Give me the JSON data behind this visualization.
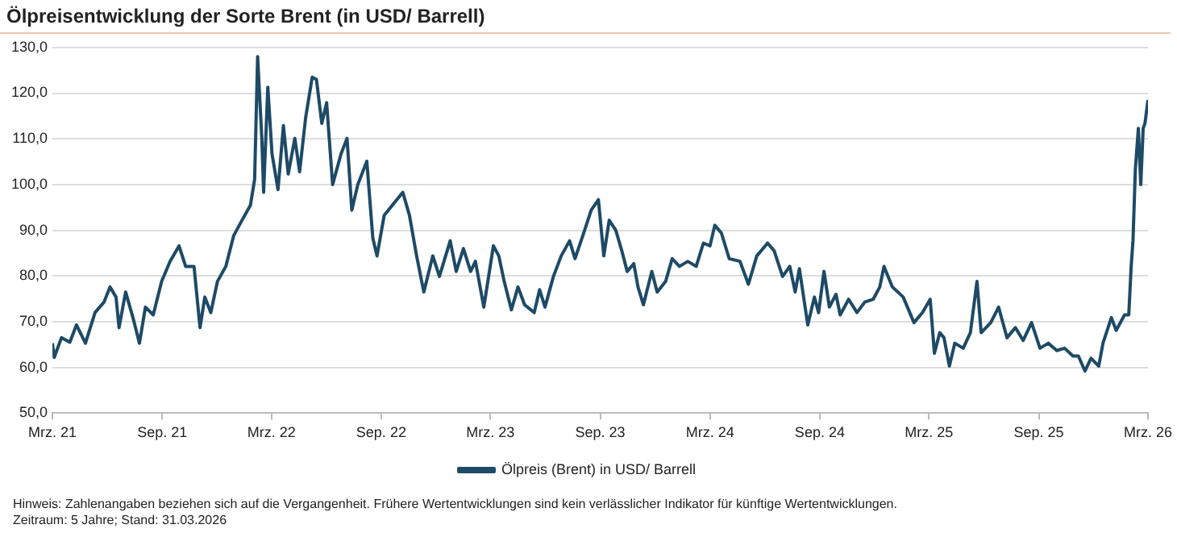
{
  "chart_data": {
    "type": "line",
    "title": "Ölpreisentwicklung der Sorte Brent (in USD/ Barrell)",
    "x": [
      "2021-03-31",
      "2021-04-03",
      "2021-04-15",
      "2021-04-29",
      "2021-05-10",
      "2021-05-25",
      "2021-06-10",
      "2021-06-25",
      "2021-07-05",
      "2021-07-15",
      "2021-07-20",
      "2021-07-31",
      "2021-08-12",
      "2021-08-23",
      "2021-09-02",
      "2021-09-15",
      "2021-09-29",
      "2021-10-13",
      "2021-10-28",
      "2021-11-08",
      "2021-11-22",
      "2021-12-02",
      "2021-12-10",
      "2021-12-20",
      "2021-12-31",
      "2022-01-14",
      "2022-01-27",
      "2022-02-10",
      "2022-02-24",
      "2022-03-03",
      "2022-03-08",
      "2022-03-15",
      "2022-03-18",
      "2022-03-25",
      "2022-04-01",
      "2022-04-11",
      "2022-04-20",
      "2022-04-28",
      "2022-05-09",
      "2022-05-17",
      "2022-05-27",
      "2022-06-07",
      "2022-06-14",
      "2022-06-23",
      "2022-07-01",
      "2022-07-11",
      "2022-07-25",
      "2022-08-04",
      "2022-08-12",
      "2022-08-22",
      "2022-09-06",
      "2022-09-16",
      "2022-09-23",
      "2022-10-05",
      "2022-11-05",
      "2022-11-16",
      "2022-11-28",
      "2022-12-10",
      "2022-12-25",
      "2023-01-05",
      "2023-01-23",
      "2023-02-02",
      "2023-02-14",
      "2023-02-26",
      "2023-03-06",
      "2023-03-20",
      "2023-04-05",
      "2023-04-14",
      "2023-04-23",
      "2023-05-05",
      "2023-05-16",
      "2023-05-27",
      "2023-06-12",
      "2023-06-21",
      "2023-06-30",
      "2023-07-14",
      "2023-07-27",
      "2023-08-10",
      "2023-08-19",
      "2023-09-01",
      "2023-09-15",
      "2023-09-27",
      "2023-10-06",
      "2023-10-15",
      "2023-10-26",
      "2023-11-05",
      "2023-11-14",
      "2023-11-25",
      "2023-12-02",
      "2023-12-11",
      "2023-12-25",
      "2024-01-03",
      "2024-01-17",
      "2024-01-28",
      "2024-02-09",
      "2024-02-23",
      "2024-03-08",
      "2024-03-20",
      "2024-03-31",
      "2024-04-08",
      "2024-04-19",
      "2024-05-02",
      "2024-05-20",
      "2024-06-03",
      "2024-06-17",
      "2024-07-05",
      "2024-07-16",
      "2024-07-30",
      "2024-08-11",
      "2024-08-20",
      "2024-08-27",
      "2024-09-10",
      "2024-09-21",
      "2024-09-28",
      "2024-10-07",
      "2024-10-16",
      "2024-10-27",
      "2024-11-03",
      "2024-11-17",
      "2024-12-01",
      "2024-12-14",
      "2024-12-28",
      "2025-01-08",
      "2025-01-15",
      "2025-01-29",
      "2025-02-16",
      "2025-03-06",
      "2025-03-20",
      "2025-04-02",
      "2025-04-09",
      "2025-04-18",
      "2025-04-25",
      "2025-05-04",
      "2025-05-13",
      "2025-05-27",
      "2025-06-08",
      "2025-06-19",
      "2025-06-26",
      "2025-07-12",
      "2025-07-25",
      "2025-08-08",
      "2025-08-22",
      "2025-09-04",
      "2025-09-18",
      "2025-10-02",
      "2025-10-16",
      "2025-10-30",
      "2025-11-12",
      "2025-11-26",
      "2025-12-05",
      "2025-12-16",
      "2025-12-26",
      "2026-01-08",
      "2026-01-15",
      "2026-01-29",
      "2026-02-06",
      "2026-02-20",
      "2026-02-27",
      "2026-03-03",
      "2026-03-06",
      "2026-03-10",
      "2026-03-15",
      "2026-03-19",
      "2026-03-23",
      "2026-03-26",
      "2026-03-31"
    ],
    "series": [
      {
        "name": "Ölpreis (Brent) in USD/ Barrell",
        "color": "#1d4a66",
        "values": [
          65.3,
          62.2,
          66.5,
          65.5,
          69.3,
          65.3,
          72,
          74.3,
          77.6,
          75.4,
          68.7,
          76.5,
          71,
          65.3,
          73.2,
          71.5,
          78.8,
          83.2,
          86.6,
          82.1,
          82.1,
          68.7,
          75.4,
          72,
          78.8,
          82.1,
          88.8,
          92.2,
          95.5,
          101.1,
          128,
          110.1,
          98.3,
          121.3,
          106.7,
          98.9,
          112.9,
          102.3,
          110.1,
          102.8,
          114.6,
          123.5,
          123,
          113.4,
          117.9,
          100,
          106.7,
          110.1,
          94.4,
          100,
          105.1,
          88.3,
          84.4,
          93.3,
          98.3,
          93.3,
          84.4,
          76.5,
          84.4,
          79.9,
          87.7,
          81,
          86,
          81,
          83.2,
          73.2,
          86.6,
          84.4,
          78.8,
          72.6,
          77.6,
          73.7,
          72,
          77,
          73.2,
          79.9,
          84.4,
          87.7,
          83.8,
          88.8,
          94.4,
          96.7,
          84.4,
          92.2,
          90,
          85.5,
          81,
          82.7,
          77.6,
          73.7,
          81,
          76.5,
          78.8,
          83.8,
          82.1,
          83.2,
          82.1,
          87.2,
          86.6,
          91.1,
          89.4,
          83.8,
          83.2,
          78.2,
          84.4,
          87.2,
          85.5,
          79.9,
          82.1,
          76.5,
          81.6,
          69.3,
          75.4,
          72,
          81,
          73.2,
          76,
          71.5,
          74.9,
          72,
          74.3,
          74.9,
          77.6,
          82.1,
          77.6,
          75.4,
          69.8,
          72,
          74.9,
          63.1,
          67.6,
          66.5,
          60.3,
          65.3,
          64.2,
          67.6,
          78.8,
          67.6,
          69.8,
          73.2,
          66.5,
          68.7,
          65.9,
          69.8,
          64.2,
          65.3,
          63.7,
          64.2,
          62.5,
          62.5,
          59.2,
          62,
          60.3,
          65.3,
          70.9,
          68.1,
          71.5,
          71.5,
          82.1,
          87.7,
          103.4,
          112.3,
          100,
          112.3,
          113.4,
          118.5
        ]
      }
    ],
    "xlim": [
      "2021-03-31",
      "2026-03-31"
    ],
    "xticks": [
      {
        "value": "2021-03-31",
        "label": "Mrz. 21"
      },
      {
        "value": "2021-09-30",
        "label": "Sep. 21"
      },
      {
        "value": "2022-03-31",
        "label": "Mrz. 22"
      },
      {
        "value": "2022-09-30",
        "label": "Sep. 22"
      },
      {
        "value": "2023-03-31",
        "label": "Mrz. 23"
      },
      {
        "value": "2023-09-30",
        "label": "Sep. 23"
      },
      {
        "value": "2024-03-31",
        "label": "Mrz. 24"
      },
      {
        "value": "2024-09-30",
        "label": "Sep. 24"
      },
      {
        "value": "2025-03-31",
        "label": "Mrz. 25"
      },
      {
        "value": "2025-09-30",
        "label": "Sep. 25"
      },
      {
        "value": "2026-03-31",
        "label": "Mrz. 26"
      }
    ],
    "ylim": [
      50,
      130
    ],
    "yticks": [
      {
        "value": 50,
        "label": "50,0"
      },
      {
        "value": 60,
        "label": "60,0"
      },
      {
        "value": 70,
        "label": "70,0"
      },
      {
        "value": 80,
        "label": "80,0"
      },
      {
        "value": 90,
        "label": "90,0"
      },
      {
        "value": 100,
        "label": "100,0"
      },
      {
        "value": 110,
        "label": "110,0"
      },
      {
        "value": 120,
        "label": "120,0"
      },
      {
        "value": 130,
        "label": "130,0"
      }
    ],
    "grid": "y",
    "legend": "bottom",
    "marker": "none",
    "line_style": "solid",
    "annotations": [
      "Hinweis: Zahlenangaben beziehen sich auf die Vergangenheit. Frühere Wertentwicklungen sind kein verlässlicher Indikator für künftige Wertentwicklungen.",
      "Zeitraum: 5 Jahre; Stand: 31.03.2026"
    ]
  }
}
